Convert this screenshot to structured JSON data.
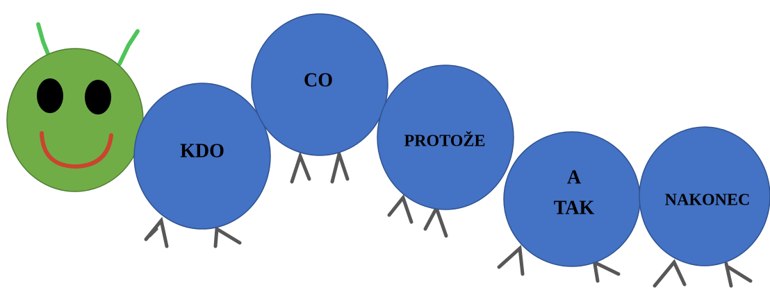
{
  "segments": [
    {
      "lines": [
        "KDO"
      ]
    },
    {
      "lines": [
        "CO"
      ]
    },
    {
      "lines": [
        "PROTOŽE"
      ]
    },
    {
      "lines": [
        "A",
        "TAK"
      ]
    },
    {
      "lines": [
        "NAKONEC"
      ]
    }
  ]
}
